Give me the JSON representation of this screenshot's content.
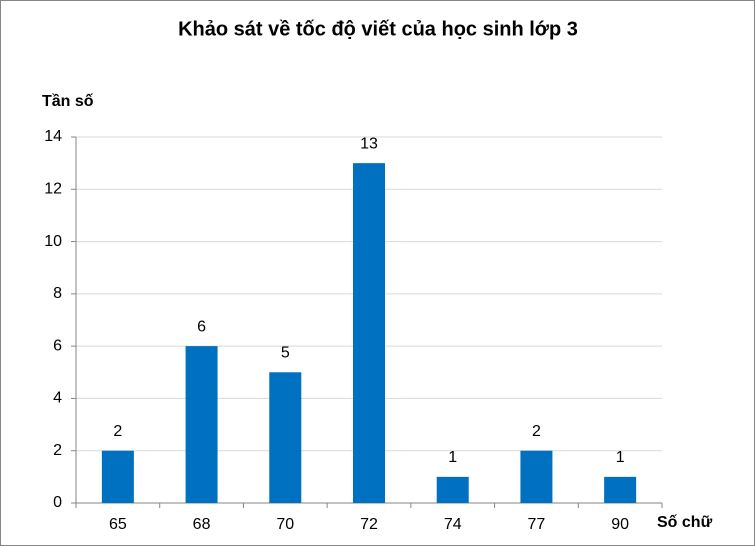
{
  "chart_data": {
    "type": "bar",
    "title": "Khảo sát về tốc độ viết của học sinh lớp 3",
    "ylabel": "Tần số",
    "xlabel": "Số chữ",
    "categories": [
      "65",
      "68",
      "70",
      "72",
      "74",
      "77",
      "90"
    ],
    "values": [
      2,
      6,
      5,
      13,
      1,
      2,
      1
    ],
    "color": "#0070c0",
    "ylim": [
      0,
      14
    ],
    "yticks": [
      0,
      2,
      4,
      6,
      8,
      10,
      12,
      14
    ],
    "grid": true
  }
}
